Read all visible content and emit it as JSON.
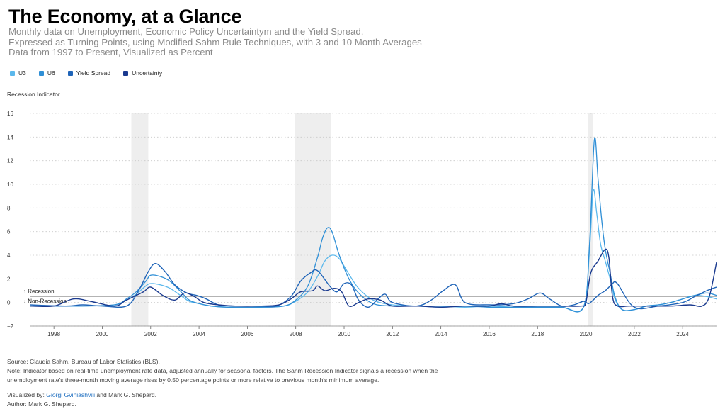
{
  "header": {
    "title": "The Economy, at a Glance",
    "subtitle_lines": [
      "Monthly data on Unemployment, Economic Policy Uncertaintym and the Yield Spread,",
      "Expressed as Turning Points, using Modified Sahm Rule Techniques, with 3 and 10 Month Averages",
      "Data from 1997 to Present, Visualized as Percent"
    ]
  },
  "legend": [
    {
      "label": "U3",
      "color": "#5bb8ec"
    },
    {
      "label": "U6",
      "color": "#2f8fd6"
    },
    {
      "label": "Yield Spread",
      "color": "#1f64b8"
    },
    {
      "label": "Uncertainty",
      "color": "#1a3a8f"
    }
  ],
  "chart_data": {
    "type": "line",
    "ylabel": "Recession Indicator",
    "ylim": [
      -2,
      16
    ],
    "xlim": [
      1997,
      2025.4
    ],
    "y_ticks": [
      "16",
      "14",
      "12",
      "10",
      "8",
      "6",
      "4",
      "2",
      "0",
      "−2"
    ],
    "y_tick_values": [
      16,
      14,
      12,
      10,
      8,
      6,
      4,
      2,
      0,
      -2
    ],
    "x_ticks": [
      "1998",
      "2000",
      "2002",
      "2004",
      "2006",
      "2008",
      "2010",
      "2012",
      "2014",
      "2016",
      "2018",
      "2020",
      "2022",
      "2024"
    ],
    "x_tick_values": [
      1998,
      2000,
      2002,
      2004,
      2006,
      2008,
      2010,
      2012,
      2014,
      2016,
      2018,
      2020,
      2022,
      2024
    ],
    "threshold": 0.5,
    "annotations": [
      "↑ Recession",
      "↓ Non-Recession"
    ],
    "recessions": [
      [
        2001.2,
        2001.9
      ],
      [
        2007.95,
        2009.45
      ],
      [
        2020.1,
        2020.3
      ]
    ],
    "grid": "horizontal dotted",
    "series": [
      {
        "name": "U3",
        "color": "#5bb8ec",
        "width": 1.3,
        "x": [
          1997,
          1999,
          2000.5,
          2001,
          2001.4,
          2001.8,
          2002.0,
          2002.4,
          2002.8,
          2003.3,
          2003.6,
          2004.0,
          2004.5,
          2005.2,
          2006.5,
          2007.5,
          2008.0,
          2008.5,
          2008.9,
          2009.2,
          2009.5,
          2009.8,
          2010.2,
          2010.6,
          2011.2,
          2012.0,
          2013.0,
          2014.0,
          2015.0,
          2016.0,
          2017.0,
          2018.0,
          2019.0,
          2019.9,
          2020.15,
          2020.3,
          2020.45,
          2020.6,
          2020.8,
          2021.0,
          2021.2,
          2021.5,
          2022.0,
          2022.5,
          2023.0,
          2023.5,
          2024.0,
          2024.5,
          2025.0,
          2025.4
        ],
        "y": [
          -0.3,
          -0.3,
          -0.2,
          0.2,
          0.7,
          1.4,
          1.6,
          1.5,
          1.2,
          0.5,
          0.1,
          -0.1,
          -0.3,
          -0.4,
          -0.4,
          -0.3,
          0.1,
          0.9,
          2.2,
          3.5,
          4.0,
          3.7,
          2.4,
          1.2,
          0.2,
          -0.2,
          -0.3,
          -0.3,
          -0.4,
          -0.3,
          -0.4,
          -0.4,
          -0.4,
          -0.4,
          4.5,
          9.5,
          7.5,
          5.0,
          3.5,
          2.0,
          0.3,
          -0.6,
          -0.6,
          -0.3,
          -0.2,
          0.0,
          0.3,
          0.6,
          0.5,
          0.3
        ]
      },
      {
        "name": "U6",
        "color": "#2f8fd6",
        "width": 1.3,
        "x": [
          1997,
          1999,
          2000.5,
          2001,
          2001.4,
          2001.8,
          2002.0,
          2002.4,
          2002.8,
          2003.3,
          2003.6,
          2004.0,
          2004.5,
          2005.2,
          2006.5,
          2007.5,
          2008.0,
          2008.5,
          2008.9,
          2009.1,
          2009.3,
          2009.5,
          2009.8,
          2010.2,
          2010.6,
          2011.2,
          2012.0,
          2013.0,
          2014.0,
          2015.0,
          2016.0,
          2017.0,
          2018.0,
          2019.0,
          2019.9,
          2020.15,
          2020.35,
          2020.5,
          2020.65,
          2020.8,
          2021.0,
          2021.2,
          2021.5,
          2022.0,
          2022.5,
          2023.0,
          2023.5,
          2024.0,
          2024.5,
          2025.0,
          2025.4
        ],
        "y": [
          -0.3,
          -0.3,
          -0.2,
          0.3,
          0.9,
          1.8,
          2.3,
          2.2,
          1.8,
          0.8,
          0.2,
          -0.1,
          -0.3,
          -0.4,
          -0.4,
          -0.3,
          0.2,
          1.4,
          3.8,
          5.4,
          6.3,
          6.0,
          4.0,
          2.0,
          0.8,
          -0.1,
          -0.3,
          -0.3,
          -0.4,
          -0.3,
          -0.4,
          -0.4,
          -0.4,
          -0.4,
          -0.4,
          5.0,
          13.8,
          10.5,
          7.0,
          4.5,
          2.5,
          0.5,
          -0.6,
          -0.6,
          -0.3,
          -0.2,
          0.0,
          0.3,
          0.6,
          0.8,
          0.6
        ]
      },
      {
        "name": "Yield Spread",
        "color": "#1f64b8",
        "width": 1.4,
        "x": [
          1997,
          1998.5,
          1999.2,
          2000.0,
          2001.0,
          2001.5,
          2001.9,
          2002.2,
          2002.6,
          2003.0,
          2003.5,
          2003.9,
          2004.3,
          2004.8,
          2005.5,
          2006.5,
          2007.2,
          2007.8,
          2008.2,
          2008.6,
          2008.9,
          2009.4,
          2009.7,
          2010.0,
          2010.3,
          2010.6,
          2011.0,
          2011.4,
          2011.7,
          2012.0,
          2013.0,
          2013.6,
          2014.1,
          2014.6,
          2015.0,
          2016.0,
          2017.0,
          2017.6,
          2018.1,
          2018.5,
          2019.0,
          2019.5,
          2019.9,
          2020.1,
          2020.3,
          2020.5,
          2020.8,
          2021.0,
          2021.1,
          2021.3,
          2022.0,
          2023.0,
          2024.0,
          2024.5,
          2025.0,
          2025.4
        ],
        "y": [
          -0.2,
          -0.3,
          -0.2,
          -0.3,
          -0.3,
          1.0,
          2.6,
          3.3,
          2.6,
          1.5,
          0.8,
          0.6,
          0.3,
          -0.2,
          -0.3,
          -0.3,
          -0.3,
          0.5,
          1.8,
          2.5,
          2.7,
          1.4,
          0.9,
          1.6,
          1.5,
          0.2,
          -0.4,
          0.3,
          0.7,
          0.0,
          -0.3,
          0.2,
          1.0,
          1.5,
          0.0,
          -0.2,
          -0.1,
          0.3,
          0.8,
          0.3,
          -0.3,
          -0.2,
          0.1,
          -0.1,
          0.2,
          0.6,
          1.0,
          1.4,
          1.6,
          1.6,
          -0.4,
          -0.3,
          0.0,
          0.5,
          1.0,
          1.3
        ]
      },
      {
        "name": "Uncertainty",
        "color": "#1a3a8f",
        "width": 1.4,
        "x": [
          1997,
          1998.0,
          1998.8,
          1999.5,
          2000.5,
          2001.0,
          2001.7,
          2002.0,
          2002.5,
          2003.0,
          2003.4,
          2003.8,
          2004.2,
          2004.8,
          2005.5,
          2006.5,
          2007.3,
          2007.8,
          2008.2,
          2008.7,
          2008.9,
          2009.2,
          2009.6,
          2009.9,
          2010.2,
          2010.6,
          2011.0,
          2011.5,
          2012.0,
          2013.0,
          2014.0,
          2015.0,
          2016.0,
          2016.5,
          2017.0,
          2018.0,
          2019.0,
          2019.8,
          2020.0,
          2020.2,
          2020.5,
          2020.8,
          2020.95,
          2021.1,
          2021.3,
          2021.8,
          2022.5,
          2023.5,
          2024.3,
          2024.8,
          2025.1,
          2025.4
        ],
        "y": [
          -0.3,
          -0.3,
          0.3,
          0.1,
          -0.3,
          0.2,
          0.9,
          1.3,
          0.6,
          0.2,
          0.8,
          0.5,
          0.0,
          -0.2,
          -0.3,
          -0.3,
          -0.2,
          0.3,
          0.9,
          1.0,
          1.4,
          1.0,
          1.2,
          0.9,
          -0.3,
          0.0,
          0.3,
          0.2,
          -0.3,
          -0.3,
          -0.4,
          -0.3,
          -0.3,
          -0.1,
          -0.3,
          -0.3,
          -0.3,
          -0.3,
          0.0,
          2.5,
          3.5,
          4.5,
          3.8,
          0.5,
          -0.3,
          -0.3,
          -0.3,
          -0.3,
          -0.2,
          -0.3,
          0.5,
          3.4
        ]
      }
    ]
  },
  "footer": {
    "source": "Source: Claudia Sahm, Bureau of Labor Statistics (BLS).",
    "note_line1": "Note: Indicator based on real-time unemployment rate data, adjusted annually for seasonal factors. The Sahm Recession Indicator signals a recession when the",
    "note_line2": "unemployment rate's three-month moving average rises by 0.50 percentage points or more relative to previous month's minimum average.",
    "visualized_prefix": "Visualized by: ",
    "visualized_link": "Giorgi Gviniashvili",
    "visualized_suffix": " and Mark G. Shepard.",
    "author": "Author: Mark G. Shepard."
  }
}
